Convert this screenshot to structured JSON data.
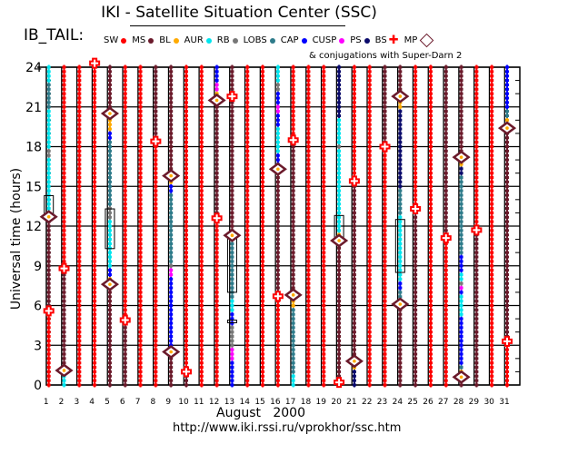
{
  "title": "IKI - Satellite Situation Center (SSC)",
  "panel": "IB_TAIL:",
  "conjugation_note": "& conjugations with Super-Darn 2",
  "url": "http://www.iki.rssi.ru/vprokhor/ssc.htm",
  "legend": [
    {
      "code": "SW",
      "label": "SW",
      "color": "#ff0000",
      "mark": "dot"
    },
    {
      "code": "MS",
      "label": "MS",
      "color": "#6b1a2b",
      "mark": "dot"
    },
    {
      "code": "BL",
      "label": "BL",
      "color": "#ffaa00",
      "mark": "dot"
    },
    {
      "code": "AUR",
      "label": "AUR",
      "color": "#00e5ee",
      "mark": "dot"
    },
    {
      "code": "RB",
      "label": "RB",
      "color": "#777777",
      "mark": "dot"
    },
    {
      "code": "LOBS",
      "label": "LOBS",
      "color": "#2e7b8a",
      "mark": "dot"
    },
    {
      "code": "CAP",
      "label": "CAP",
      "color": "#0000ff",
      "mark": "dot"
    },
    {
      "code": "CUSP",
      "label": "CUSP",
      "color": "#ff00ff",
      "mark": "dot"
    },
    {
      "code": "PS",
      "label": "PS",
      "color": "#0a0a6b",
      "mark": "dot"
    },
    {
      "code": "BS",
      "label": "BS",
      "color": "#ff0000",
      "mark": "cross"
    },
    {
      "code": "MP",
      "label": "MP",
      "color": "#6b1a2b",
      "mark": "diamond"
    }
  ],
  "chart_data": {
    "type": "scatter",
    "title": "IKI - Satellite Situation Center (SSC)",
    "xlabel": "August   2000",
    "ylabel": "Universal time (hours)",
    "xlim": [
      1,
      31
    ],
    "ylim": [
      0,
      24
    ],
    "yticks": [
      "0",
      "3",
      "6",
      "9",
      "12",
      "15",
      "18",
      "21",
      "24"
    ],
    "xticks": [
      "1",
      "2",
      "3",
      "4",
      "5",
      "6",
      "7",
      "8",
      "9",
      "10",
      "11",
      "12",
      "13",
      "14",
      "15",
      "16",
      "17",
      "18",
      "19",
      "20",
      "21",
      "22",
      "23",
      "24",
      "25",
      "26",
      "27",
      "28",
      "29",
      "30",
      "31"
    ],
    "grid": true,
    "days": [
      {
        "day": 1,
        "segments": [
          [
            0,
            5.6,
            "SW"
          ],
          [
            5.6,
            12.5,
            "MS"
          ],
          [
            12.5,
            13.2,
            "BL"
          ],
          [
            13.2,
            17.3,
            "AUR"
          ],
          [
            17.3,
            18,
            "RB"
          ],
          [
            18,
            21,
            "AUR"
          ],
          [
            21,
            23,
            "LOBS"
          ],
          [
            23,
            24,
            "AUR"
          ]
        ],
        "mp": [
          12.7
        ],
        "bs": [
          5.6
        ],
        "conj": [
          [
            12.7,
            14.3
          ]
        ]
      },
      {
        "day": 2,
        "segments": [
          [
            0,
            0.7,
            "AUR"
          ],
          [
            0.7,
            1.0,
            "BL"
          ],
          [
            1,
            8.8,
            "MS"
          ],
          [
            8.8,
            24,
            "SW"
          ]
        ],
        "mp": [
          1.1
        ],
        "bs": [
          8.8
        ],
        "conj": []
      },
      {
        "day": 3,
        "segments": [
          [
            0,
            24,
            "SW"
          ]
        ],
        "mp": [],
        "bs": [],
        "conj": []
      },
      {
        "day": 4,
        "segments": [
          [
            0,
            24,
            "SW"
          ]
        ],
        "mp": [],
        "bs": [
          24.3
        ],
        "conj": []
      },
      {
        "day": 5,
        "segments": [
          [
            0,
            7.4,
            "MS"
          ],
          [
            7.4,
            8.1,
            "BL"
          ],
          [
            8.1,
            8.8,
            "CAP"
          ],
          [
            8.8,
            12.5,
            "AUR"
          ],
          [
            12.5,
            13.4,
            "RB"
          ],
          [
            13.4,
            18.4,
            "LOBS"
          ],
          [
            18.4,
            19.3,
            "CAP"
          ],
          [
            19.3,
            20.3,
            "BL"
          ],
          [
            20.3,
            24,
            "MS"
          ]
        ],
        "mp": [
          7.6,
          20.5
        ],
        "bs": [],
        "conj": [
          [
            10.3,
            13.3
          ]
        ]
      },
      {
        "day": 6,
        "segments": [
          [
            0,
            4.9,
            "MS"
          ],
          [
            4.9,
            24,
            "SW"
          ]
        ],
        "mp": [],
        "bs": [
          4.9
        ],
        "conj": []
      },
      {
        "day": 7,
        "segments": [
          [
            0,
            24,
            "SW"
          ]
        ],
        "mp": [],
        "bs": [],
        "conj": []
      },
      {
        "day": 8,
        "segments": [
          [
            0,
            18.4,
            "SW"
          ],
          [
            18.4,
            24,
            "MS"
          ]
        ],
        "mp": [],
        "bs": [
          18.4
        ],
        "conj": []
      },
      {
        "day": 9,
        "segments": [
          [
            0,
            2.3,
            "MS"
          ],
          [
            2.3,
            3,
            "BL"
          ],
          [
            3,
            8.3,
            "CAP"
          ],
          [
            8.3,
            8.8,
            "CUSP"
          ],
          [
            8.8,
            9.2,
            "RB"
          ],
          [
            9.2,
            14.6,
            "LOBS"
          ],
          [
            14.6,
            15.1,
            "CAP"
          ],
          [
            15.1,
            15.7,
            "BL"
          ],
          [
            15.7,
            24,
            "MS"
          ]
        ],
        "mp": [
          2.5,
          15.8
        ],
        "bs": [],
        "conj": []
      },
      {
        "day": 10,
        "segments": [
          [
            0,
            1,
            "MS"
          ],
          [
            1,
            24,
            "SW"
          ]
        ],
        "mp": [],
        "bs": [
          1.0
        ],
        "conj": []
      },
      {
        "day": 11,
        "segments": [
          [
            0,
            24,
            "SW"
          ]
        ],
        "mp": [],
        "bs": [],
        "conj": []
      },
      {
        "day": 12,
        "segments": [
          [
            0,
            12.6,
            "SW"
          ],
          [
            12.6,
            21.3,
            "MS"
          ],
          [
            21.3,
            22.2,
            "BL"
          ],
          [
            22.2,
            23,
            "CUSP"
          ],
          [
            23,
            24,
            "CAP"
          ]
        ],
        "mp": [
          21.5
        ],
        "bs": [
          12.6
        ],
        "conj": []
      },
      {
        "day": 13,
        "segments": [
          [
            0,
            2,
            "CAP"
          ],
          [
            2,
            3,
            "CUSP"
          ],
          [
            3,
            4.5,
            "RB"
          ],
          [
            4.5,
            5.4,
            "CAP"
          ],
          [
            5.4,
            6.4,
            "AUR"
          ],
          [
            6.4,
            10.7,
            "LOBS"
          ],
          [
            10.7,
            11.1,
            "BL"
          ],
          [
            11.1,
            24,
            "MS"
          ]
        ],
        "mp": [
          11.3
        ],
        "bs": [
          21.8
        ],
        "conj": [
          [
            7,
            11.2
          ],
          [
            4.7,
            4.9
          ]
        ]
      },
      {
        "day": 14,
        "segments": [
          [
            0,
            24,
            "SW"
          ]
        ],
        "mp": [],
        "bs": [],
        "conj": []
      },
      {
        "day": 15,
        "segments": [
          [
            0,
            24,
            "SW"
          ]
        ],
        "mp": [],
        "bs": [],
        "conj": []
      },
      {
        "day": 16,
        "segments": [
          [
            0,
            6.6,
            "SW"
          ],
          [
            6.6,
            16,
            "MS"
          ],
          [
            16,
            16.6,
            "BL"
          ],
          [
            16.6,
            17.5,
            "CAP"
          ],
          [
            17.5,
            19.5,
            "AUR"
          ],
          [
            19.5,
            20.5,
            "CAP"
          ],
          [
            20.5,
            21.3,
            "CUSP"
          ],
          [
            21.3,
            22.3,
            "CAP"
          ],
          [
            22.3,
            23,
            "RB"
          ],
          [
            23,
            24,
            "AUR"
          ]
        ],
        "mp": [
          16.3
        ],
        "bs": [
          6.7
        ],
        "conj": []
      },
      {
        "day": 17,
        "segments": [
          [
            0,
            0.7,
            "AUR"
          ],
          [
            0.7,
            6,
            "LOBS"
          ],
          [
            6,
            6.5,
            "BL"
          ],
          [
            6.5,
            18.4,
            "MS"
          ],
          [
            18.4,
            24,
            "SW"
          ]
        ],
        "mp": [
          6.8
        ],
        "bs": [
          18.5
        ],
        "conj": []
      },
      {
        "day": 18,
        "segments": [
          [
            0,
            24,
            "SW"
          ]
        ],
        "mp": [],
        "bs": [],
        "conj": []
      },
      {
        "day": 19,
        "segments": [
          [
            0,
            24,
            "SW"
          ]
        ],
        "mp": [],
        "bs": [],
        "conj": []
      },
      {
        "day": 20,
        "segments": [
          [
            0,
            10.6,
            "MS"
          ],
          [
            10.6,
            11.6,
            "BL"
          ],
          [
            11.6,
            18,
            "AUR"
          ],
          [
            18,
            18.3,
            "RB"
          ],
          [
            18.3,
            20.3,
            "AUR"
          ],
          [
            20.3,
            24,
            "PS"
          ]
        ],
        "mp": [
          10.9
        ],
        "bs": [
          0.2
        ],
        "conj": [
          [
            11,
            12.8
          ]
        ]
      },
      {
        "day": 21,
        "segments": [
          [
            0,
            1.2,
            "PS"
          ],
          [
            1.2,
            1.6,
            "BL"
          ],
          [
            1.6,
            15.3,
            "MS"
          ],
          [
            15.3,
            24,
            "SW"
          ]
        ],
        "mp": [
          1.8
        ],
        "bs": [
          15.4
        ],
        "conj": []
      },
      {
        "day": 22,
        "segments": [
          [
            0,
            24,
            "SW"
          ]
        ],
        "mp": [],
        "bs": [],
        "conj": []
      },
      {
        "day": 23,
        "segments": [
          [
            0,
            17.9,
            "SW"
          ],
          [
            17.9,
            24,
            "MS"
          ]
        ],
        "mp": [],
        "bs": [
          18.0
        ],
        "conj": []
      },
      {
        "day": 24,
        "segments": [
          [
            0,
            5.7,
            "MS"
          ],
          [
            5.7,
            6.6,
            "BL"
          ],
          [
            6.6,
            7.3,
            "LOBS"
          ],
          [
            7.3,
            8.0,
            "CAP"
          ],
          [
            8,
            12.8,
            "AUR"
          ],
          [
            12.8,
            15,
            "LOBS"
          ],
          [
            15,
            21,
            "PS"
          ],
          [
            21,
            21.5,
            "BL"
          ],
          [
            21.5,
            24,
            "MS"
          ]
        ],
        "mp": [
          6.1,
          21.8
        ],
        "bs": [],
        "conj": [
          [
            8.5,
            12.5
          ]
        ]
      },
      {
        "day": 25,
        "segments": [
          [
            0,
            13.3,
            "MS"
          ],
          [
            13.3,
            24,
            "SW"
          ]
        ],
        "mp": [],
        "bs": [
          13.3
        ],
        "conj": []
      },
      {
        "day": 26,
        "segments": [
          [
            0,
            24,
            "SW"
          ]
        ],
        "mp": [],
        "bs": [],
        "conj": []
      },
      {
        "day": 27,
        "segments": [
          [
            0,
            11,
            "SW"
          ],
          [
            11,
            24,
            "MS"
          ]
        ],
        "mp": [],
        "bs": [
          11.1
        ],
        "conj": []
      },
      {
        "day": 28,
        "segments": [
          [
            0,
            0.4,
            "MS"
          ],
          [
            0.4,
            1.2,
            "BL"
          ],
          [
            1.2,
            1.6,
            "LOBS"
          ],
          [
            1.6,
            5.3,
            "CAP"
          ],
          [
            5.3,
            6.7,
            "AUR"
          ],
          [
            6.7,
            7.1,
            "CAP"
          ],
          [
            7.1,
            7.4,
            "CUSP"
          ],
          [
            7.4,
            7.9,
            "RB"
          ],
          [
            7.9,
            8.4,
            "AUR"
          ],
          [
            8.4,
            10,
            "CAP"
          ],
          [
            10,
            16,
            "LOBS"
          ],
          [
            16,
            16.4,
            "PS"
          ],
          [
            16.4,
            16.9,
            "BL"
          ],
          [
            16.9,
            24,
            "MS"
          ]
        ],
        "mp": [
          0.6,
          17.2
        ],
        "bs": [],
        "conj": []
      },
      {
        "day": 29,
        "segments": [
          [
            0,
            11.7,
            "MS"
          ],
          [
            11.7,
            24,
            "SW"
          ]
        ],
        "mp": [],
        "bs": [
          11.7
        ],
        "conj": []
      },
      {
        "day": 30,
        "segments": [
          [
            0,
            24,
            "SW"
          ]
        ],
        "mp": [],
        "bs": [],
        "conj": []
      },
      {
        "day": 31,
        "segments": [
          [
            0,
            3.2,
            "SW"
          ],
          [
            3.2,
            19.2,
            "MS"
          ],
          [
            19.2,
            20.2,
            "BL"
          ],
          [
            20.2,
            21,
            "LOBS"
          ],
          [
            21,
            24,
            "CAP"
          ]
        ],
        "mp": [
          19.4
        ],
        "bs": [
          3.3
        ],
        "conj": []
      }
    ]
  }
}
